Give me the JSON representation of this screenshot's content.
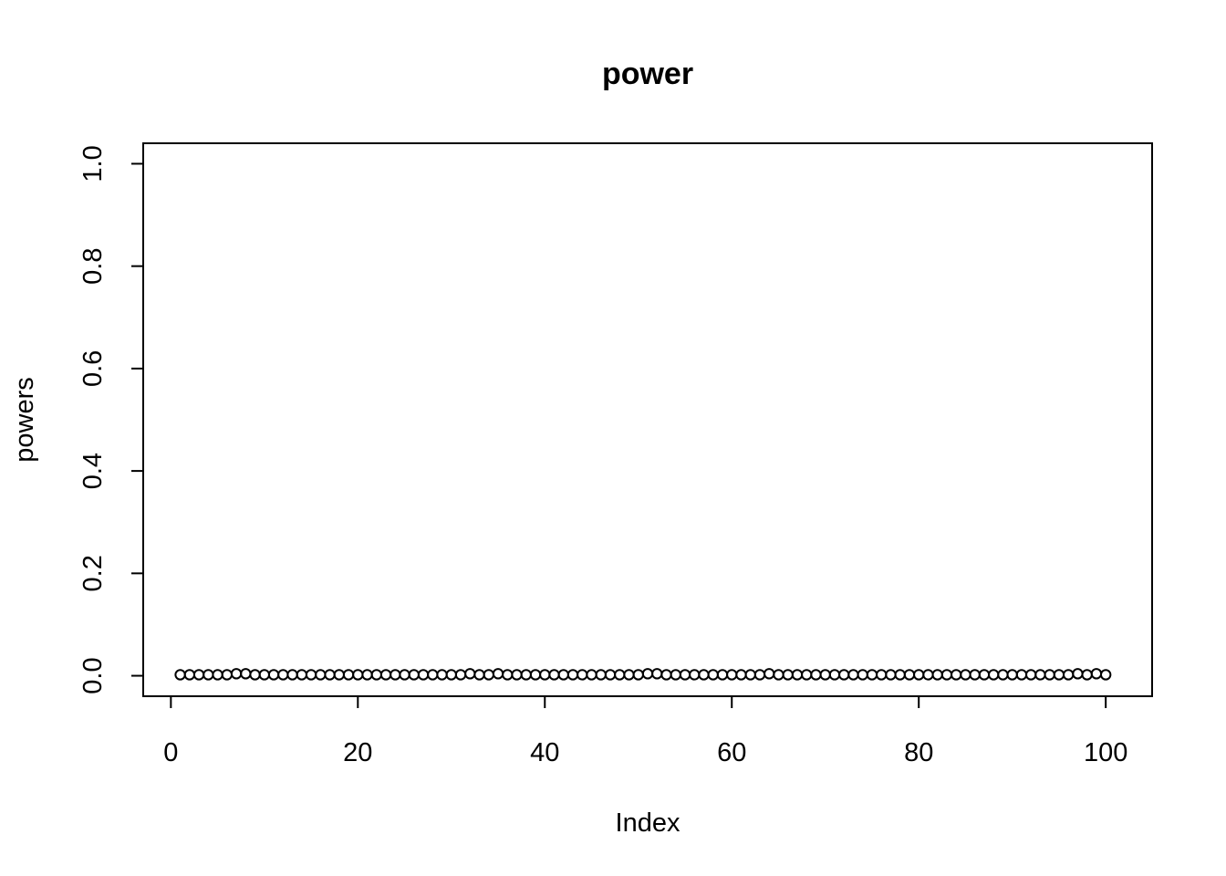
{
  "chart_data": {
    "type": "scatter",
    "title": "power",
    "xlabel": "Index",
    "ylabel": "powers",
    "xlim": [
      -2.96,
      104.96
    ],
    "ylim": [
      -0.04,
      1.04
    ],
    "x_ticks": [
      0,
      20,
      40,
      60,
      80,
      100
    ],
    "y_ticks": [
      0.0,
      0.2,
      0.4,
      0.6,
      0.8,
      1.0
    ],
    "x_tick_labels": [
      "0",
      "20",
      "40",
      "60",
      "80",
      "100"
    ],
    "y_tick_labels": [
      "0.0",
      "0.2",
      "0.4",
      "0.6",
      "0.8",
      "1.0"
    ],
    "grid": false,
    "series": [
      {
        "x": [
          1,
          2,
          3,
          4,
          5,
          6,
          7,
          8,
          9,
          10,
          11,
          12,
          13,
          14,
          15,
          16,
          17,
          18,
          19,
          20,
          21,
          22,
          23,
          24,
          25,
          26,
          27,
          28,
          29,
          30,
          31,
          32,
          33,
          34,
          35,
          36,
          37,
          38,
          39,
          40,
          41,
          42,
          43,
          44,
          45,
          46,
          47,
          48,
          49,
          50,
          51,
          52,
          53,
          54,
          55,
          56,
          57,
          58,
          59,
          60,
          61,
          62,
          63,
          64,
          65,
          66,
          67,
          68,
          69,
          70,
          71,
          72,
          73,
          74,
          75,
          76,
          77,
          78,
          79,
          80,
          81,
          82,
          83,
          84,
          85,
          86,
          87,
          88,
          89,
          90,
          91,
          92,
          93,
          94,
          95,
          96,
          97,
          98,
          99,
          100
        ],
        "values": [
          0.002,
          0.002,
          0.002,
          0.002,
          0.002,
          0.002,
          0.004,
          0.004,
          0.002,
          0.002,
          0.002,
          0.002,
          0.002,
          0.002,
          0.002,
          0.002,
          0.002,
          0.002,
          0.002,
          0.002,
          0.002,
          0.002,
          0.002,
          0.002,
          0.002,
          0.002,
          0.002,
          0.002,
          0.002,
          0.002,
          0.002,
          0.004,
          0.002,
          0.002,
          0.004,
          0.002,
          0.002,
          0.002,
          0.002,
          0.002,
          0.002,
          0.002,
          0.002,
          0.002,
          0.002,
          0.002,
          0.002,
          0.002,
          0.002,
          0.002,
          0.004,
          0.004,
          0.002,
          0.002,
          0.002,
          0.002,
          0.002,
          0.002,
          0.002,
          0.002,
          0.002,
          0.002,
          0.002,
          0.004,
          0.002,
          0.002,
          0.002,
          0.002,
          0.002,
          0.002,
          0.002,
          0.002,
          0.002,
          0.002,
          0.002,
          0.002,
          0.002,
          0.002,
          0.002,
          0.002,
          0.002,
          0.002,
          0.002,
          0.002,
          0.002,
          0.002,
          0.002,
          0.002,
          0.002,
          0.002,
          0.002,
          0.002,
          0.002,
          0.002,
          0.002,
          0.002,
          0.004,
          0.002,
          0.004,
          0.002
        ]
      }
    ]
  }
}
